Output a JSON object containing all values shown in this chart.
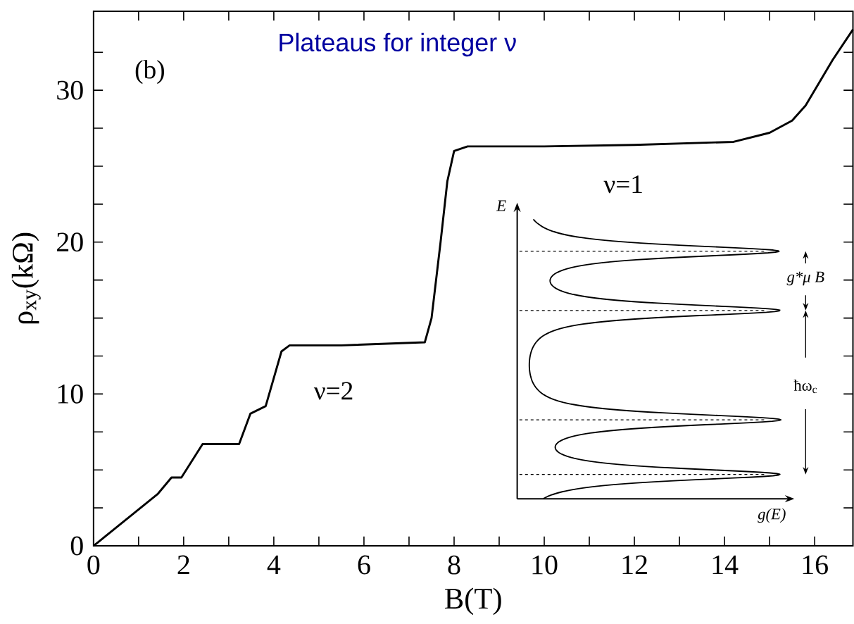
{
  "chart_data": {
    "type": "line",
    "title": "Plateaus for integer ν",
    "xlabel": "B(T)",
    "ylabel": "ρ$_{xy}$(kΩ)",
    "x": [
      0,
      1.42,
      1.73,
      1.95,
      2.42,
      3.23,
      3.48,
      3.82,
      4.17,
      4.35,
      5.5,
      7.35,
      7.5,
      7.7,
      7.85,
      8.0,
      8.3,
      10,
      12,
      14.2,
      15,
      15.5,
      15.8,
      16.1,
      16.4,
      16.85
    ],
    "values": [
      0,
      3.4,
      4.5,
      4.5,
      6.7,
      6.7,
      8.7,
      9.2,
      12.8,
      13.2,
      13.2,
      13.4,
      15,
      20,
      24,
      26,
      26.3,
      26.3,
      26.4,
      26.6,
      27.2,
      28,
      29,
      30.5,
      32,
      34
    ],
    "color": "#000000",
    "xlim": [
      0,
      16.85
    ],
    "ylim": [
      0,
      35.2
    ],
    "xticks": [
      0,
      {
        "value": 1,
        "label": null
      },
      2,
      {
        "value": 3,
        "label": null
      },
      4,
      {
        "value": 5,
        "label": null
      },
      6,
      {
        "value": 7,
        "label": null
      },
      8,
      {
        "value": 9,
        "label": null
      },
      10,
      {
        "value": 11,
        "label": null
      },
      12,
      {
        "value": 13,
        "label": null
      },
      14,
      {
        "value": 15,
        "label": null
      },
      16
    ],
    "yticks": [
      0,
      {
        "value": 2.5,
        "label": null
      },
      {
        "value": 5,
        "label": null
      },
      {
        "value": 7.5,
        "label": null
      },
      10,
      {
        "value": 12.5,
        "label": null
      },
      {
        "value": 15,
        "label": null
      },
      {
        "value": 17.5,
        "label": null
      },
      20,
      {
        "value": 22.5,
        "label": null
      },
      {
        "value": 25,
        "label": null
      },
      {
        "value": 27.5,
        "label": null
      },
      30,
      {
        "value": 32.5,
        "label": null
      }
    ],
    "annotations": [
      "(b)",
      "ν=2",
      "ν=1",
      "E",
      "g(E)",
      "g*μ B",
      "ħω$_{c}$"
    ],
    "grid": false,
    "marker": "none",
    "line_style": "solid"
  }
}
